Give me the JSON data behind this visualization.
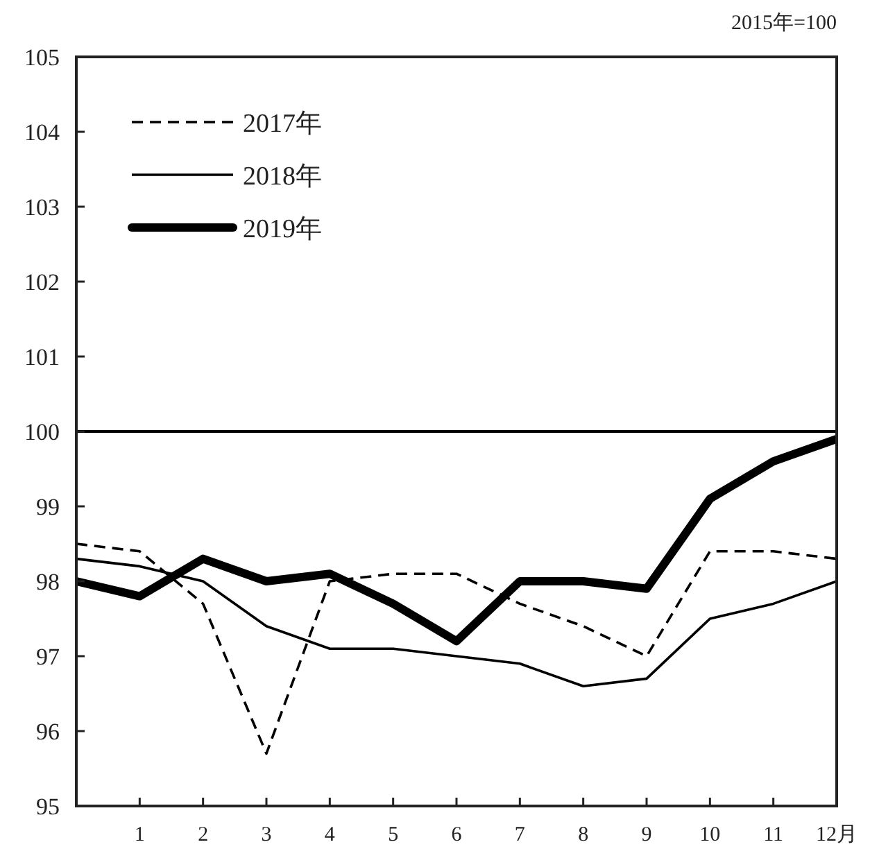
{
  "chart_data": {
    "type": "line",
    "annotations": [
      "2015年=100"
    ],
    "x": [
      0,
      1,
      2,
      3,
      4,
      5,
      6,
      7,
      8,
      9,
      10,
      11,
      12
    ],
    "xlim": [
      0,
      12
    ],
    "xticks": [
      1,
      2,
      3,
      4,
      5,
      6,
      7,
      8,
      9,
      10,
      11,
      {
        "value": 12,
        "label": "12月"
      }
    ],
    "ylim": [
      95,
      105
    ],
    "yticks": [
      95,
      96,
      97,
      98,
      99,
      100,
      101,
      102,
      103,
      104,
      105
    ],
    "legend": "top left",
    "series": [
      {
        "name": "2017年",
        "color": "#000000",
        "line_style": "dashed",
        "values": [
          98.5,
          98.4,
          97.7,
          95.7,
          98.0,
          98.1,
          98.1,
          97.7,
          97.4,
          97.0,
          98.4,
          98.4,
          98.3
        ]
      },
      {
        "name": "2018年",
        "color": "#000000",
        "line_style": "solid",
        "values": [
          98.3,
          98.2,
          98.0,
          97.4,
          97.1,
          97.1,
          97.0,
          96.9,
          96.6,
          96.7,
          97.5,
          97.7,
          98.0
        ]
      },
      {
        "name": "2019年",
        "color": "#000000",
        "line_style": "solid",
        "values": [
          98.0,
          97.8,
          98.3,
          98.0,
          98.1,
          97.7,
          97.2,
          98.0,
          98.0,
          97.9,
          99.1,
          99.6,
          99.9
        ]
      }
    ],
    "ref_lines": [
      {
        "axis": "y",
        "value": 100,
        "color": "#000000",
        "line_style": "solid"
      }
    ]
  }
}
